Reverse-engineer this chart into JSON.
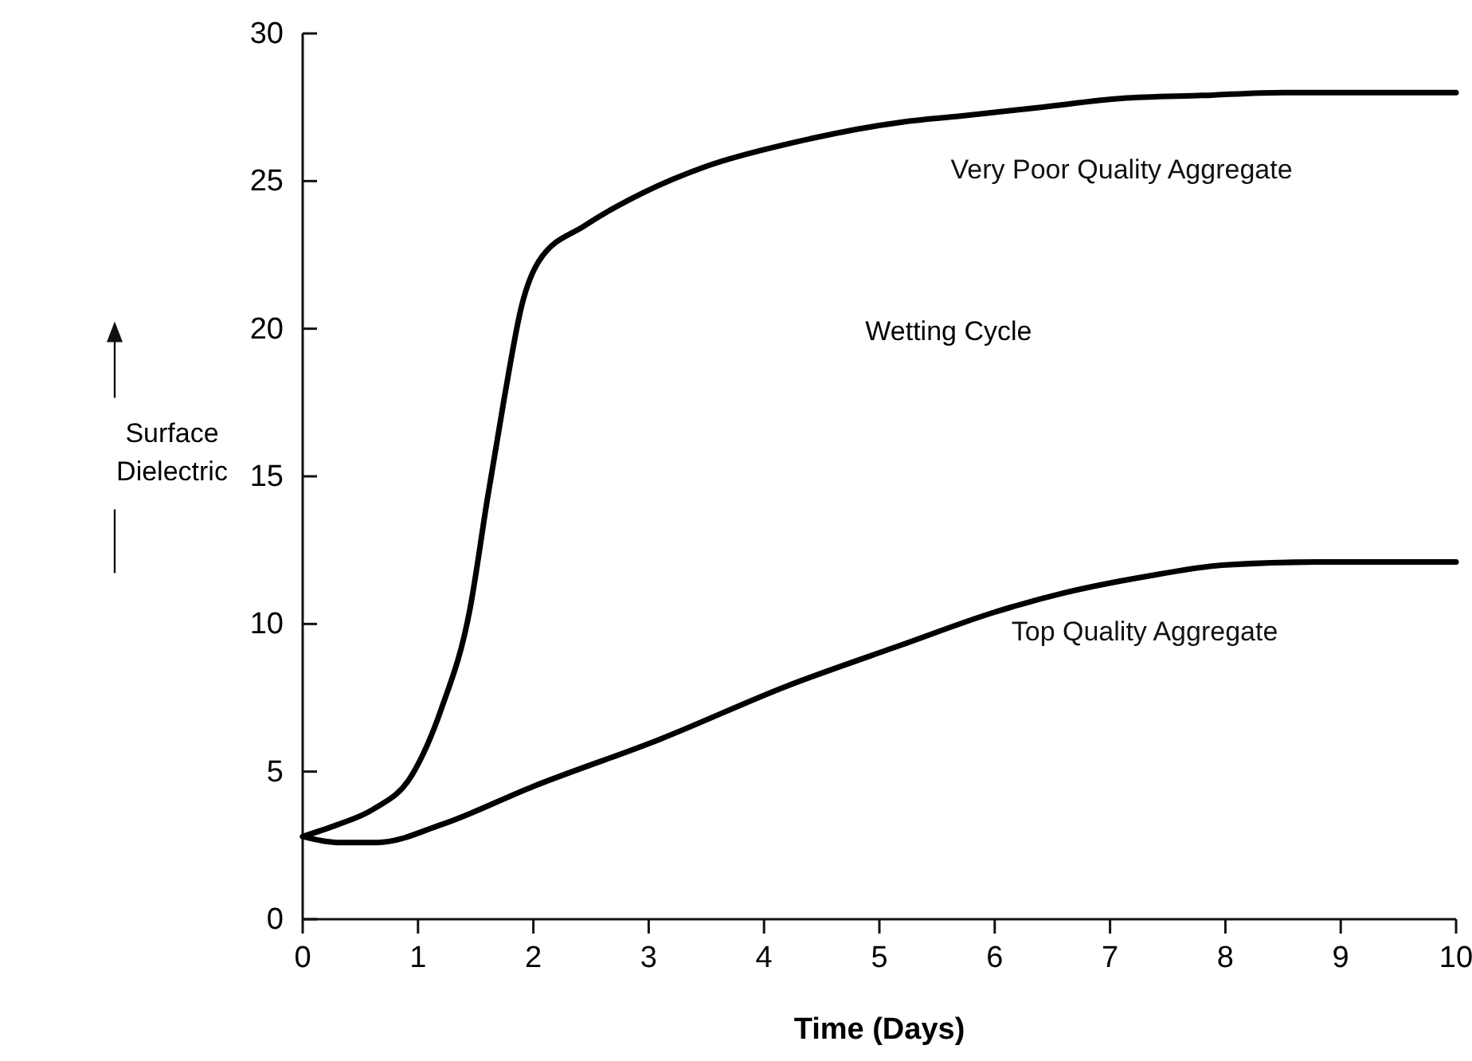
{
  "chart_data": {
    "type": "line",
    "xlabel": "Time (Days)",
    "ylabel": "Surface Dielectric",
    "annotations": [
      "Wetting Cycle"
    ],
    "xlim": [
      0,
      10
    ],
    "ylim": [
      0,
      30
    ],
    "xticks": [
      0,
      1,
      2,
      3,
      4,
      5,
      6,
      7,
      8,
      9,
      10
    ],
    "yticks": [
      0,
      5,
      10,
      15,
      20,
      25,
      30
    ],
    "grid": false,
    "marker": "none",
    "line_style": "solid",
    "series": [
      {
        "name": "Very Poor Quality Aggregate",
        "color": "#000000",
        "x": [
          0,
          0.3,
          0.6,
          0.95,
          1.2,
          1.45,
          1.6,
          1.75,
          1.9,
          2.05,
          2.45,
          2.95,
          3.5,
          4.25,
          5.2,
          5.7,
          6.4,
          7.1,
          7.8,
          8.5,
          9.2,
          10
        ],
        "values": [
          2.8,
          3.2,
          3.7,
          4.9,
          7.1,
          10.5,
          14.2,
          17.7,
          20.8,
          22.3,
          23.5,
          24.6,
          25.5,
          26.3,
          27.0,
          27.2,
          27.5,
          27.8,
          27.9,
          28.0,
          28.0,
          28.0
        ]
      },
      {
        "name": "Top Quality Aggregate",
        "color": "#000000",
        "x": [
          0,
          0.3,
          0.65,
          1.2,
          2.0,
          3.1,
          4.2,
          5.2,
          6.0,
          6.6,
          7.3,
          8.0,
          8.8,
          9.9,
          10
        ],
        "values": [
          2.8,
          2.6,
          2.6,
          3.2,
          4.5,
          6.1,
          7.9,
          9.3,
          10.4,
          11.05,
          11.6,
          12.0,
          12.1,
          12.1,
          12.1
        ]
      }
    ]
  }
}
